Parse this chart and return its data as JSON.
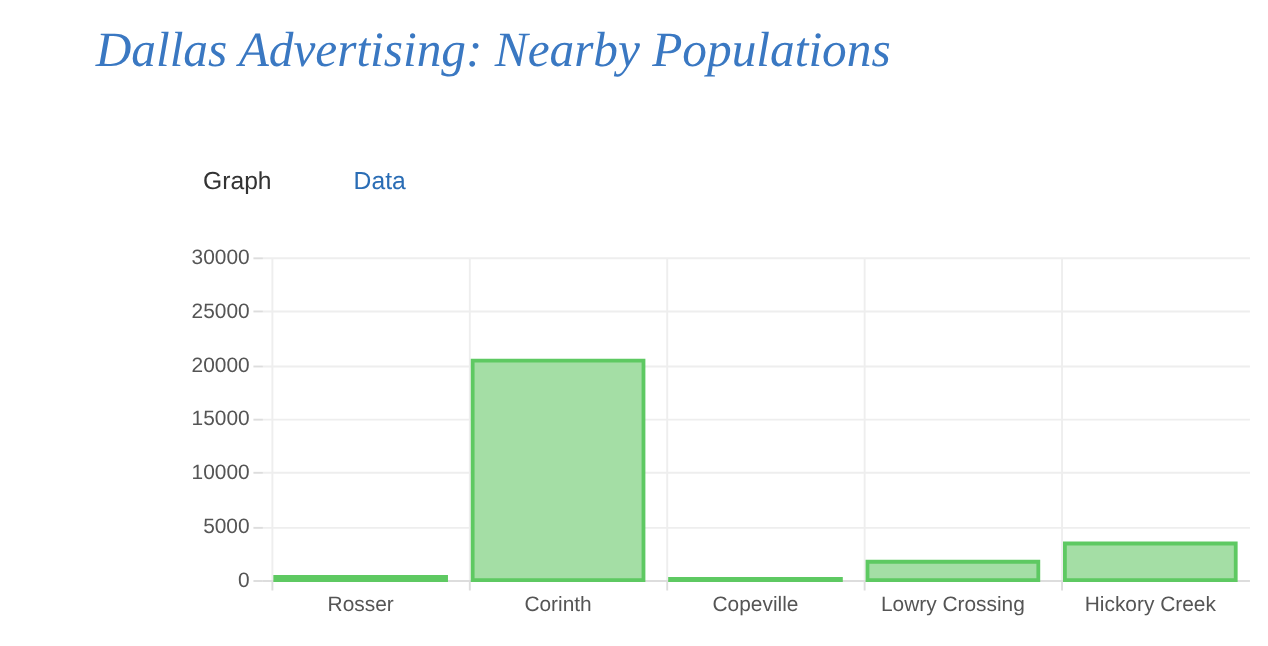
{
  "chart_data": {
    "type": "bar",
    "title": "Dallas Advertising: Nearby Populations",
    "annotations": [
      "Graph",
      "Data"
    ],
    "categories": [
      "Rosser",
      "Corinth",
      "Copeville",
      "Lowry Crossing",
      "Hickory Creek"
    ],
    "values": [
      300,
      20400,
      100,
      1700,
      3400
    ],
    "color": "#a4dea5",
    "ylim": [
      0,
      30000
    ],
    "yticks": [
      0,
      5000,
      10000,
      15000,
      20000,
      25000,
      30000
    ],
    "grid": true
  }
}
